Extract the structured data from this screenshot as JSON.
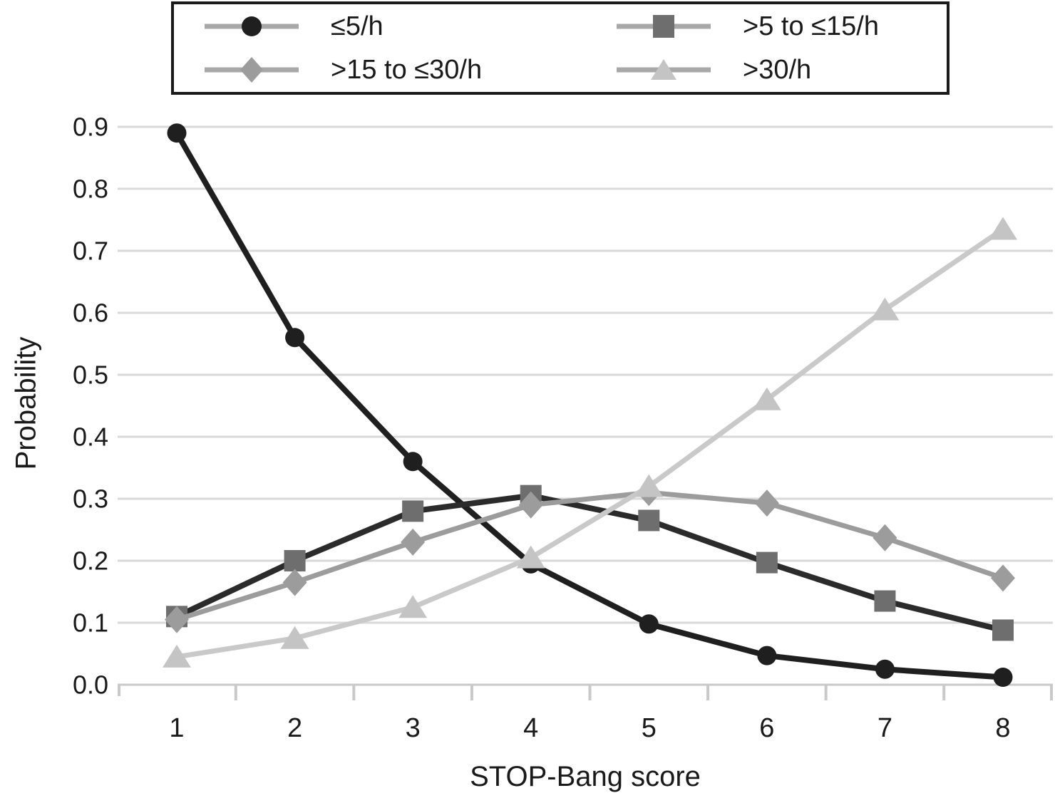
{
  "chart_data": {
    "type": "line",
    "title": "",
    "xlabel": "STOP-Bang score",
    "ylabel": "Probability",
    "x": [
      1,
      2,
      3,
      4,
      5,
      6,
      7,
      8
    ],
    "x_tick_labels": [
      "1",
      "2",
      "3",
      "4",
      "5",
      "6",
      "7",
      "8"
    ],
    "y_tick_labels": [
      "0.0",
      "0.1",
      "0.2",
      "0.3",
      "0.4",
      "0.5",
      "0.6",
      "0.7",
      "0.8",
      "0.9"
    ],
    "ylim": [
      0,
      0.9
    ],
    "y_tick_step": 0.1,
    "grid": "horizontal-only",
    "legend_position": "top-center-boxed",
    "series": [
      {
        "name": "≤5/h",
        "marker": "circle",
        "marker_color": "#1f1f1f",
        "line_color": "#1f1f1f",
        "values": [
          0.89,
          0.56,
          0.36,
          0.195,
          0.098,
          0.047,
          0.025,
          0.012
        ]
      },
      {
        "name": ">5 to ≤15/h",
        "marker": "square",
        "marker_color": "#6e6e6e",
        "line_color": "#2b2b2b",
        "values": [
          0.11,
          0.2,
          0.28,
          0.305,
          0.265,
          0.197,
          0.135,
          0.088
        ]
      },
      {
        "name": ">15 to ≤30/h",
        "marker": "diamond",
        "marker_color": "#9c9c9c",
        "line_color": "#9c9c9c",
        "values": [
          0.105,
          0.165,
          0.23,
          0.29,
          0.31,
          0.293,
          0.237,
          0.172
        ]
      },
      {
        "name": ">30/h",
        "marker": "triangle",
        "marker_color": "#c4c4c4",
        "line_color": "#c9c9c9",
        "values": [
          0.045,
          0.075,
          0.125,
          0.205,
          0.32,
          0.46,
          0.605,
          0.735
        ]
      }
    ],
    "colors": {
      "grid": "#d9d9d9",
      "axis": "#c9c9c9",
      "text": "#1a1a1a",
      "legend_line": "#a8a8a8",
      "legend_border": "#1a1a1a",
      "background": "#ffffff"
    }
  }
}
